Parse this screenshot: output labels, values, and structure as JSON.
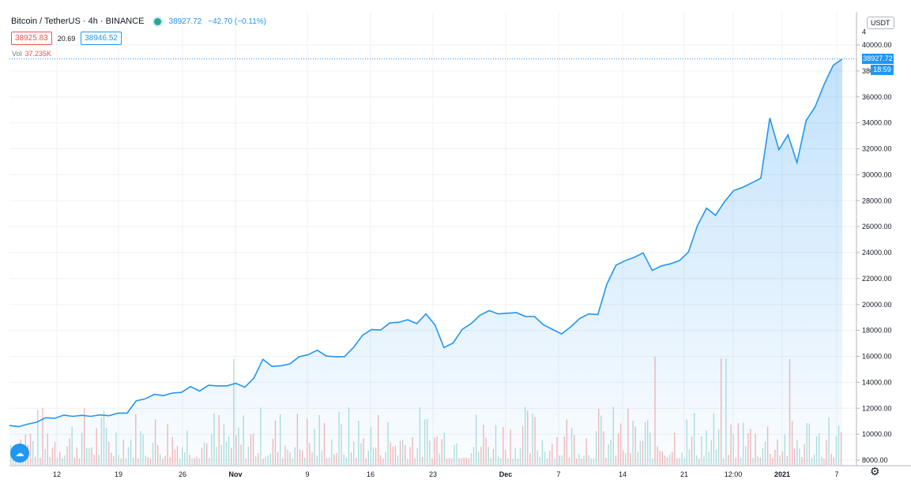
{
  "header": {
    "symbol": "Bitcoin / TetherUS · 4h · BINANCE",
    "last_price": "38927.72",
    "change": "−42.70 (−0.11%)",
    "bid": "38925.83",
    "spread": "20.69",
    "ask": "38946.52",
    "vol_label": "Vol",
    "vol_value": "37.235K"
  },
  "price_scale": {
    "currency": "USDT",
    "last_label": "38927.72",
    "timer": "18:59"
  },
  "icons": {
    "settings": "gear-icon",
    "logo": "tradingview-logo-icon"
  },
  "colors": {
    "line": "#2196f3",
    "area": "#2196f3",
    "vol_up": "#b2dfdb",
    "vol_down": "#f5b8b8",
    "grid": "#eef0f3"
  },
  "chart_data": {
    "type": "area",
    "y_axis": {
      "ticks": [
        "40000.00",
        "38000.00",
        "36000.00",
        "34000.00",
        "32000.00",
        "30000.00",
        "28000.00",
        "26000.00",
        "24000.00",
        "22000.00",
        "20000.00",
        "18000.00",
        "16000.00",
        "14000.00",
        "12000.00",
        "10000.00",
        "8000.00"
      ],
      "ylim": [
        8000,
        41000
      ],
      "top_tick_partial": "4"
    },
    "x_axis": {
      "ticks": [
        "12",
        "19",
        "26",
        "Nov",
        "9",
        "16",
        "23",
        "Dec",
        "7",
        "14",
        "21",
        "12:00",
        "2021",
        "7"
      ],
      "bold": [
        "Nov",
        "Dec",
        "2021"
      ]
    },
    "series": [
      {
        "values": [
          10600,
          10650,
          10700,
          11000,
          11200,
          11300,
          11400,
          11450,
          11380,
          11450,
          11420,
          11500,
          11550,
          11700,
          12500,
          12800,
          13000,
          13050,
          13100,
          13300,
          13600,
          13400,
          13700,
          13800,
          13650,
          14000,
          13550,
          14400,
          15700,
          15300,
          15200,
          15500,
          15900,
          16200,
          16400,
          16100,
          15900,
          16050,
          16600,
          17700,
          18000,
          18100,
          18500,
          18700,
          18750,
          18600,
          19200,
          18500,
          16600,
          17100,
          18000,
          18600,
          19100,
          19600,
          19200,
          19400,
          19300,
          19150,
          19000,
          18500,
          18000,
          17800,
          18200,
          19000,
          19200,
          19300,
          21500,
          23100,
          23300,
          23700,
          23900,
          22700,
          22900,
          23200,
          23300,
          24100,
          26000,
          27500,
          26800,
          28000,
          28700,
          29100,
          29300,
          29800,
          34300,
          32000,
          33000,
          31000,
          34100,
          35300,
          36900,
          38500,
          38927.72
        ],
        "last": "38927.72"
      }
    ]
  }
}
